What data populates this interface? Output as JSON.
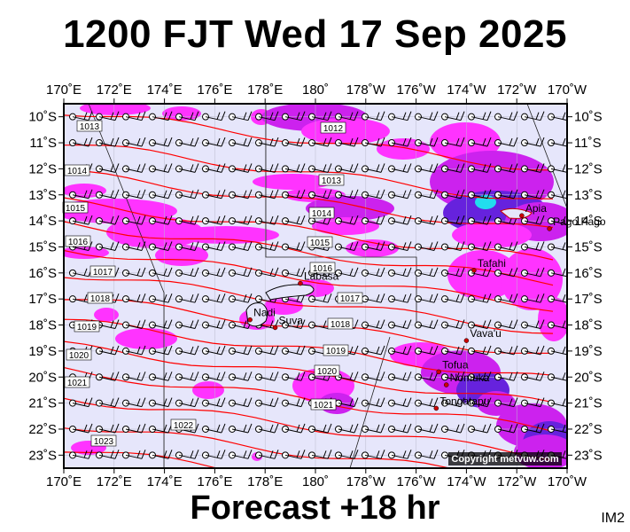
{
  "header": {
    "title": "1200 FJT Wed 17 Sep 2025"
  },
  "footer": {
    "subtitle": "Forecast +18 hr",
    "code": "IM2"
  },
  "map": {
    "lon_labels": [
      "170˚E",
      "172˚E",
      "174˚E",
      "176˚E",
      "178˚E",
      "180˚",
      "178˚W",
      "176˚W",
      "174˚W",
      "172˚W",
      "170˚W"
    ],
    "lat_labels": [
      "10˚S",
      "11˚S",
      "12˚S",
      "13˚S",
      "14˚S",
      "15˚S",
      "16˚S",
      "17˚S",
      "18˚S",
      "19˚S",
      "20˚S",
      "21˚S",
      "22˚S",
      "23˚S"
    ],
    "isobar_labels": [
      "1013",
      "1012",
      "1014",
      "1013",
      "1015",
      "1014",
      "1016",
      "1015",
      "1017",
      "1016",
      "1018",
      "1017",
      "1019",
      "1018",
      "1020",
      "1019",
      "1021",
      "1020",
      "1021",
      "1022",
      "1023"
    ],
    "places": [
      {
        "name": "Apia",
        "lon": -171.8,
        "lat": -13.8
      },
      {
        "name": "Pago Pago",
        "lon": -170.7,
        "lat": -14.3
      },
      {
        "name": "Tafahi",
        "lon": -173.7,
        "lat": -15.9
      },
      {
        "name": "Labasa",
        "lon": 179.4,
        "lat": -16.4
      },
      {
        "name": "Nadi",
        "lon": 177.4,
        "lat": -17.8
      },
      {
        "name": "Suva",
        "lon": 178.4,
        "lat": -18.1
      },
      {
        "name": "Vava'u",
        "lon": -174.0,
        "lat": -18.6
      },
      {
        "name": "Tofua",
        "lon": -175.1,
        "lat": -19.8
      },
      {
        "name": "Nomuka",
        "lon": -174.8,
        "lat": -20.3
      },
      {
        "name": "Tongatapu",
        "lon": -175.2,
        "lat": -21.2
      }
    ],
    "copyright": "Copyright metvuw.com",
    "colors": {
      "background": "#e6e6fb",
      "isobar": "#ff0000",
      "precip_light": "#ff33ff",
      "precip_mid": "#cc22ee",
      "precip_heavy": "#6622dd",
      "precip_max": "#22ddee"
    }
  }
}
